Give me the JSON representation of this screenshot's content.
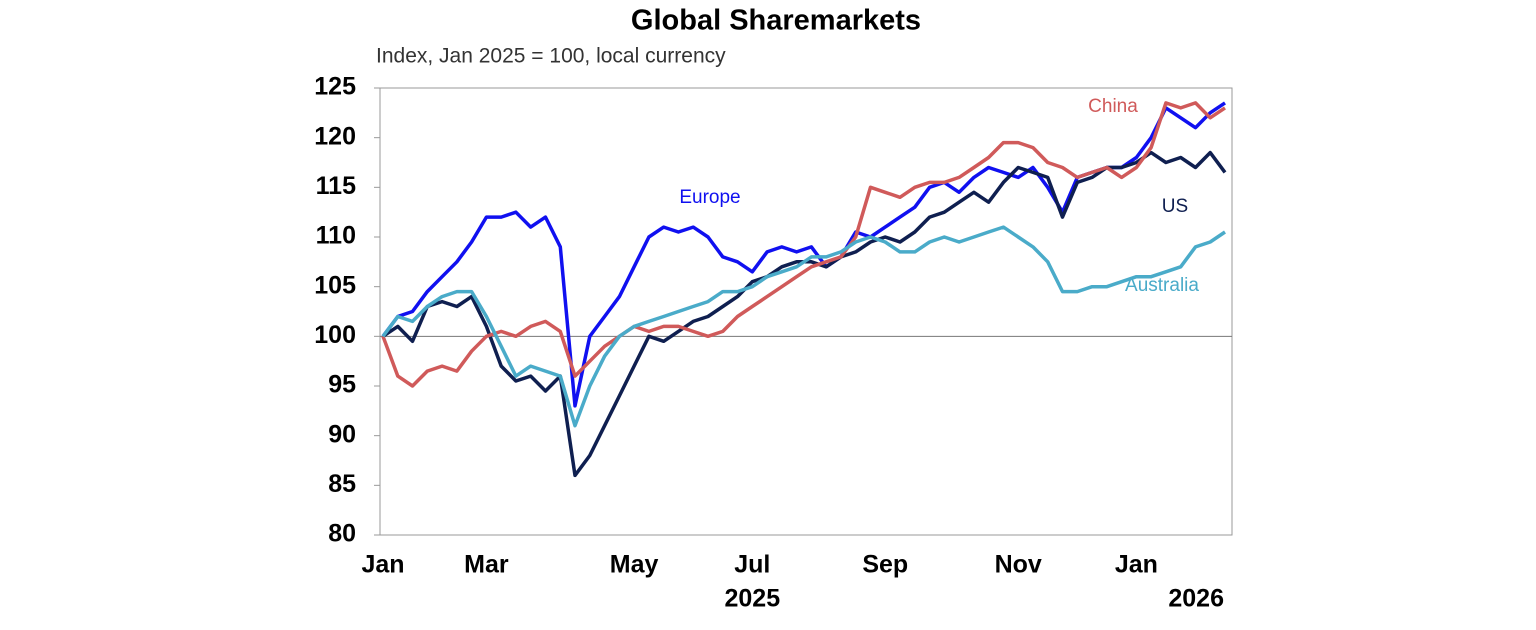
{
  "chart_data": {
    "type": "line",
    "title": "Global Sharemarkets",
    "subtitle": "Index, Jan 2025 = 100, local currency",
    "categories": [
      "Jan",
      null,
      null,
      null,
      null,
      null,
      null,
      "Mar",
      null,
      null,
      null,
      null,
      null,
      null,
      null,
      null,
      null,
      "May",
      null,
      null,
      null,
      null,
      null,
      null,
      null,
      "Jul",
      null,
      null,
      null,
      null,
      null,
      null,
      null,
      null,
      "Sep",
      null,
      null,
      null,
      null,
      null,
      null,
      null,
      null,
      "Nov",
      null,
      null,
      null,
      null,
      null,
      null,
      null,
      "Jan",
      null,
      null,
      null,
      null,
      null,
      null
    ],
    "x_year_labels": [
      "2025",
      "2026"
    ],
    "ylim": [
      80,
      125
    ],
    "yticks": [
      80,
      85,
      90,
      95,
      100,
      105,
      110,
      115,
      120,
      125
    ],
    "reference_line": 100,
    "series": [
      {
        "name": "Europe",
        "color": "#1010f0",
        "values": [
          100,
          102,
          102.5,
          104.5,
          106,
          107.5,
          109.5,
          112,
          112,
          112.5,
          111,
          112,
          109,
          93,
          100,
          102,
          104,
          107,
          110,
          111,
          110.5,
          111,
          110,
          108,
          107.5,
          106.5,
          108.5,
          109,
          108.5,
          109,
          107,
          108,
          110.5,
          110,
          111,
          112,
          113,
          115,
          115.5,
          114.5,
          116,
          117,
          116.5,
          116,
          117,
          115,
          112.5,
          116,
          116.5,
          117,
          117,
          118,
          120,
          123,
          122,
          121,
          122.5,
          123.5
        ]
      },
      {
        "name": "US",
        "color": "#0f1f50",
        "values": [
          100,
          101,
          99.5,
          103,
          103.5,
          103,
          104,
          101,
          97,
          95.5,
          96,
          94.5,
          96,
          86,
          88,
          91,
          94,
          97,
          100,
          99.5,
          100.5,
          101.5,
          102,
          103,
          104,
          105.5,
          106,
          107,
          107.5,
          107.5,
          107,
          108,
          108.5,
          109.5,
          110,
          109.5,
          110.5,
          112,
          112.5,
          113.5,
          114.5,
          113.5,
          115.5,
          117,
          116.5,
          116,
          112,
          115.5,
          116,
          117,
          117,
          117.5,
          118.5,
          117.5,
          118,
          117,
          118.5,
          116.5
        ]
      },
      {
        "name": "China",
        "color": "#d05a5a",
        "values": [
          100,
          96,
          95,
          96.5,
          97,
          96.5,
          98.5,
          100,
          100.5,
          100,
          101,
          101.5,
          100.5,
          96,
          97.5,
          99,
          100,
          101,
          100.5,
          101,
          101,
          100.5,
          100,
          100.5,
          102,
          103,
          104,
          105,
          106,
          107,
          107.5,
          108,
          110,
          115,
          114.5,
          114,
          115,
          115.5,
          115.5,
          116,
          117,
          118,
          119.5,
          119.5,
          119,
          117.5,
          117,
          116,
          116.5,
          117,
          116,
          117,
          119,
          123.5,
          123,
          123.5,
          122,
          123
        ]
      },
      {
        "name": "Australia",
        "color": "#4aabc9",
        "values": [
          100,
          102,
          101.5,
          103,
          104,
          104.5,
          104.5,
          102,
          99,
          96,
          97,
          96.5,
          96,
          91,
          95,
          98,
          100,
          101,
          101.5,
          102,
          102.5,
          103,
          103.5,
          104.5,
          104.5,
          105,
          106,
          106.5,
          107,
          108,
          108,
          108.5,
          109.5,
          110,
          109.5,
          108.5,
          108.5,
          109.5,
          110,
          109.5,
          110,
          110.5,
          111,
          110,
          109,
          107.5,
          104.5,
          104.5,
          105,
          105,
          105.5,
          106,
          106,
          106.5,
          107,
          109,
          109.5,
          110.5
        ]
      }
    ]
  }
}
